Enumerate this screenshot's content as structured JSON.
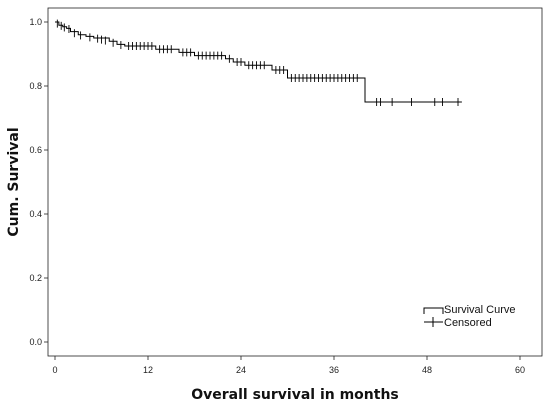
{
  "chart_data": {
    "type": "line",
    "title": "",
    "xlabel": "Overall survival in months",
    "ylabel": "Cum. Survival",
    "xlim": [
      0,
      60
    ],
    "ylim": [
      0,
      1.05
    ],
    "x_ticks": [
      0,
      12,
      24,
      36,
      48,
      60
    ],
    "y_ticks": [
      0.0,
      0.2,
      0.4,
      0.6,
      0.8,
      1.0
    ],
    "x_tick_labels": [
      "0",
      "12",
      "24",
      "36",
      "48",
      "60"
    ],
    "y_tick_labels": [
      "0.0",
      "0.2",
      "0.4",
      "0.6",
      "0.8",
      "1.0"
    ],
    "grid": false,
    "legend_position": "bottom-right",
    "series": [
      {
        "name": "Survival Curve",
        "style": "step",
        "color": "#000000",
        "points": [
          {
            "x": 0,
            "y": 1.0
          },
          {
            "x": 0.5,
            "y": 0.99
          },
          {
            "x": 1.0,
            "y": 0.985
          },
          {
            "x": 1.5,
            "y": 0.98
          },
          {
            "x": 2.0,
            "y": 0.97
          },
          {
            "x": 3.0,
            "y": 0.96
          },
          {
            "x": 4.0,
            "y": 0.955
          },
          {
            "x": 5.0,
            "y": 0.95
          },
          {
            "x": 7.0,
            "y": 0.94
          },
          {
            "x": 8.0,
            "y": 0.93
          },
          {
            "x": 9.0,
            "y": 0.925
          },
          {
            "x": 13.0,
            "y": 0.915
          },
          {
            "x": 16.0,
            "y": 0.905
          },
          {
            "x": 18.0,
            "y": 0.895
          },
          {
            "x": 22.0,
            "y": 0.885
          },
          {
            "x": 23.0,
            "y": 0.875
          },
          {
            "x": 24.5,
            "y": 0.865
          },
          {
            "x": 28.0,
            "y": 0.85
          },
          {
            "x": 30.0,
            "y": 0.825
          },
          {
            "x": 40.0,
            "y": 0.75
          },
          {
            "x": 52.5,
            "y": 0.75
          }
        ]
      },
      {
        "name": "Censored",
        "style": "plus-markers",
        "color": "#000000",
        "x": [
          0.3,
          0.8,
          1.2,
          1.8,
          2.5,
          3.3,
          4.5,
          5.5,
          6.0,
          6.5,
          7.5,
          8.5,
          9.5,
          10.0,
          10.5,
          11.0,
          11.5,
          12.0,
          12.5,
          13.5,
          14.0,
          14.5,
          15.0,
          16.5,
          17.0,
          17.5,
          18.5,
          19.0,
          19.5,
          20.0,
          20.5,
          21.0,
          21.5,
          22.5,
          23.5,
          24.0,
          25.0,
          25.5,
          26.0,
          26.5,
          27.0,
          28.5,
          29.0,
          29.5,
          30.5,
          31.0,
          31.5,
          32.0,
          32.5,
          33.0,
          33.5,
          34.0,
          34.5,
          35.0,
          35.5,
          36.0,
          36.5,
          37.0,
          37.5,
          38.0,
          38.5,
          39.0,
          41.5,
          42.0,
          43.5,
          46.0,
          49.0,
          50.0,
          52.0
        ],
        "y": [
          0.995,
          0.988,
          0.983,
          0.978,
          0.965,
          0.958,
          0.952,
          0.948,
          0.945,
          0.942,
          0.935,
          0.928,
          0.925,
          0.925,
          0.925,
          0.925,
          0.925,
          0.925,
          0.925,
          0.915,
          0.915,
          0.915,
          0.915,
          0.905,
          0.905,
          0.905,
          0.895,
          0.895,
          0.895,
          0.895,
          0.895,
          0.895,
          0.895,
          0.885,
          0.875,
          0.875,
          0.865,
          0.865,
          0.865,
          0.865,
          0.865,
          0.85,
          0.85,
          0.85,
          0.825,
          0.825,
          0.825,
          0.825,
          0.825,
          0.825,
          0.825,
          0.825,
          0.825,
          0.825,
          0.825,
          0.825,
          0.825,
          0.825,
          0.825,
          0.825,
          0.825,
          0.825,
          0.75,
          0.75,
          0.75,
          0.75,
          0.75,
          0.75,
          0.75
        ]
      }
    ]
  }
}
